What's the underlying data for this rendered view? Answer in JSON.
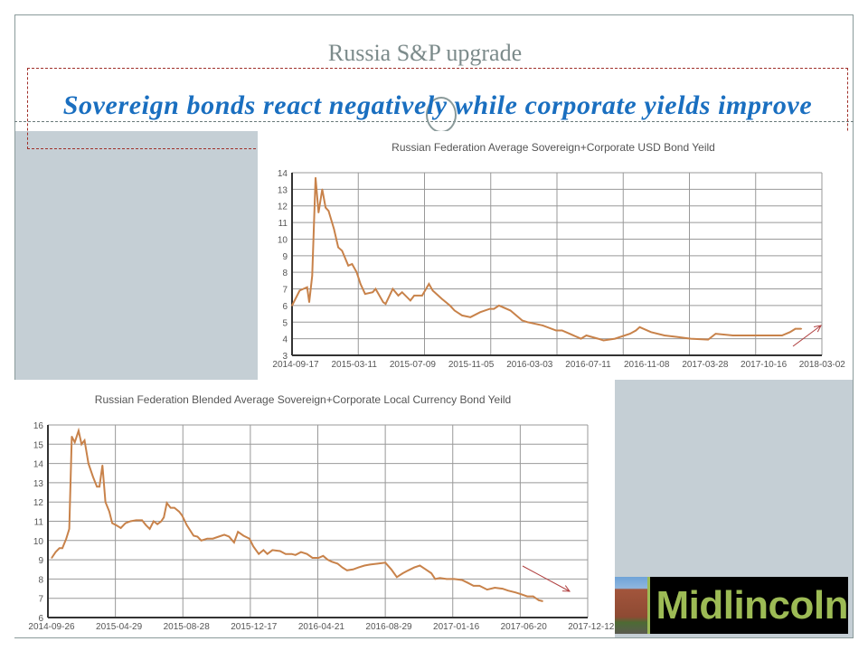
{
  "slide": {
    "title": "Russia S&P upgrade",
    "subtitle": "Sovereign bonds react negatively while corporate yields improve",
    "logo_text": "Midlincoln"
  },
  "colors": {
    "line": "#c8824a",
    "arrow": "#b04040",
    "subtitle": "#1a6fc0",
    "panel": "#c5cfd5"
  },
  "chart_data": [
    {
      "type": "line",
      "title": "Russian Federation Average Sovereign+Corporate  USD Bond Yeild",
      "xlabel": "",
      "ylabel": "",
      "x_unit": "days since 2014-09-17",
      "xlim": [
        0,
        1262
      ],
      "ylim": [
        3,
        14
      ],
      "yticks": [
        3,
        4,
        5,
        6,
        7,
        8,
        9,
        10,
        11,
        12,
        13,
        14
      ],
      "xtick_labels": [
        "2014-09-17",
        "2015-03-11",
        "2015-07-09",
        "2015-11-05",
        "2016-03-03",
        "2016-07-11",
        "2016-11-08",
        "2017-03-28",
        "2017-10-16",
        "2018-03-02"
      ],
      "grid": true,
      "annotation": "upward arrow",
      "points": [
        [
          0,
          6.0
        ],
        [
          18,
          6.9
        ],
        [
          27,
          7.0
        ],
        [
          36,
          7.1
        ],
        [
          41,
          6.2
        ],
        [
          48,
          7.8
        ],
        [
          56,
          13.7
        ],
        [
          63,
          11.6
        ],
        [
          72,
          13.0
        ],
        [
          80,
          11.9
        ],
        [
          87,
          11.7
        ],
        [
          100,
          10.6
        ],
        [
          110,
          9.5
        ],
        [
          119,
          9.3
        ],
        [
          134,
          8.4
        ],
        [
          143,
          8.5
        ],
        [
          154,
          8.0
        ],
        [
          163,
          7.3
        ],
        [
          174,
          6.7
        ],
        [
          192,
          6.8
        ],
        [
          199,
          7.0
        ],
        [
          217,
          6.2
        ],
        [
          223,
          6.1
        ],
        [
          240,
          7.0
        ],
        [
          253,
          6.6
        ],
        [
          262,
          6.8
        ],
        [
          282,
          6.3
        ],
        [
          291,
          6.6
        ],
        [
          310,
          6.6
        ],
        [
          326,
          7.3
        ],
        [
          335,
          6.9
        ],
        [
          357,
          6.4
        ],
        [
          376,
          6.0
        ],
        [
          387,
          5.7
        ],
        [
          405,
          5.4
        ],
        [
          425,
          5.3
        ],
        [
          448,
          5.6
        ],
        [
          471,
          5.8
        ],
        [
          481,
          5.8
        ],
        [
          493,
          6.0
        ],
        [
          520,
          5.7
        ],
        [
          548,
          5.1
        ],
        [
          561,
          5.0
        ],
        [
          597,
          4.8
        ],
        [
          629,
          4.5
        ],
        [
          643,
          4.5
        ],
        [
          661,
          4.3
        ],
        [
          688,
          4.0
        ],
        [
          701,
          4.2
        ],
        [
          729,
          4.0
        ],
        [
          742,
          3.9
        ],
        [
          769,
          4.0
        ],
        [
          805,
          4.3
        ],
        [
          819,
          4.5
        ],
        [
          828,
          4.7
        ],
        [
          855,
          4.4
        ],
        [
          887,
          4.2
        ],
        [
          919,
          4.1
        ],
        [
          950,
          4.0
        ],
        [
          991,
          3.95
        ],
        [
          1009,
          4.3
        ],
        [
          1050,
          4.2
        ],
        [
          1086,
          4.2
        ],
        [
          1127,
          4.2
        ],
        [
          1167,
          4.2
        ],
        [
          1186,
          4.4
        ],
        [
          1199,
          4.6
        ],
        [
          1213,
          4.6
        ]
      ]
    },
    {
      "type": "line",
      "title": "Russian Federation Blended Average Sovereign+Corporate   Local Currency Bond Yeild",
      "xlabel": "",
      "ylabel": "",
      "x_unit": "days since 2014-09-26",
      "xlim": [
        0,
        1267
      ],
      "ylim": [
        6,
        16
      ],
      "yticks": [
        6,
        7,
        8,
        9,
        10,
        11,
        12,
        13,
        14,
        15,
        16
      ],
      "xtick_labels": [
        "2014-09-26",
        "2015-04-29",
        "2015-08-28",
        "2015-12-17",
        "2016-04-21",
        "2016-08-29",
        "2017-01-16",
        "2017-06-20",
        "2017-12-12"
      ],
      "grid": true,
      "annotation": "downward arrow",
      "points": [
        [
          9,
          9.1
        ],
        [
          18,
          9.4
        ],
        [
          27,
          9.6
        ],
        [
          34,
          9.6
        ],
        [
          43,
          10.1
        ],
        [
          50,
          10.6
        ],
        [
          56,
          15.4
        ],
        [
          63,
          15.1
        ],
        [
          72,
          15.7
        ],
        [
          79,
          15.0
        ],
        [
          86,
          15.2
        ],
        [
          95,
          14.0
        ],
        [
          106,
          13.3
        ],
        [
          115,
          12.8
        ],
        [
          121,
          12.8
        ],
        [
          128,
          13.9
        ],
        [
          135,
          12.0
        ],
        [
          144,
          11.5
        ],
        [
          151,
          10.9
        ],
        [
          160,
          10.8
        ],
        [
          171,
          10.65
        ],
        [
          182,
          10.9
        ],
        [
          194,
          11.0
        ],
        [
          207,
          11.05
        ],
        [
          221,
          11.05
        ],
        [
          230,
          10.8
        ],
        [
          239,
          10.6
        ],
        [
          248,
          11.0
        ],
        [
          257,
          10.85
        ],
        [
          266,
          11.0
        ],
        [
          272,
          11.2
        ],
        [
          279,
          11.95
        ],
        [
          288,
          11.7
        ],
        [
          297,
          11.7
        ],
        [
          308,
          11.5
        ],
        [
          315,
          11.3
        ],
        [
          326,
          10.8
        ],
        [
          342,
          10.25
        ],
        [
          351,
          10.2
        ],
        [
          360,
          10.0
        ],
        [
          374,
          10.1
        ],
        [
          387,
          10.1
        ],
        [
          401,
          10.2
        ],
        [
          414,
          10.3
        ],
        [
          425,
          10.2
        ],
        [
          437,
          9.9
        ],
        [
          446,
          10.45
        ],
        [
          459,
          10.25
        ],
        [
          473,
          10.1
        ],
        [
          482,
          9.7
        ],
        [
          495,
          9.3
        ],
        [
          506,
          9.5
        ],
        [
          515,
          9.3
        ],
        [
          527,
          9.5
        ],
        [
          545,
          9.45
        ],
        [
          558,
          9.3
        ],
        [
          572,
          9.3
        ],
        [
          581,
          9.25
        ],
        [
          594,
          9.4
        ],
        [
          608,
          9.3
        ],
        [
          621,
          9.1
        ],
        [
          635,
          9.1
        ],
        [
          646,
          9.2
        ],
        [
          657,
          9.0
        ],
        [
          666,
          8.9
        ],
        [
          680,
          8.8
        ],
        [
          691,
          8.6
        ],
        [
          702,
          8.45
        ],
        [
          716,
          8.5
        ],
        [
          729,
          8.6
        ],
        [
          743,
          8.7
        ],
        [
          756,
          8.75
        ],
        [
          774,
          8.8
        ],
        [
          792,
          8.85
        ],
        [
          806,
          8.5
        ],
        [
          819,
          8.1
        ],
        [
          833,
          8.3
        ],
        [
          846,
          8.45
        ],
        [
          860,
          8.6
        ],
        [
          873,
          8.7
        ],
        [
          887,
          8.5
        ],
        [
          900,
          8.3
        ],
        [
          909,
          8.0
        ],
        [
          920,
          8.05
        ],
        [
          936,
          8.0
        ],
        [
          954,
          8.0
        ],
        [
          972,
          7.95
        ],
        [
          986,
          7.8
        ],
        [
          999,
          7.65
        ],
        [
          1013,
          7.65
        ],
        [
          1031,
          7.45
        ],
        [
          1049,
          7.55
        ],
        [
          1067,
          7.5
        ],
        [
          1080,
          7.4
        ],
        [
          1098,
          7.3
        ],
        [
          1112,
          7.2
        ],
        [
          1125,
          7.1
        ],
        [
          1139,
          7.1
        ],
        [
          1152,
          6.9
        ],
        [
          1161,
          6.85
        ]
      ]
    }
  ]
}
